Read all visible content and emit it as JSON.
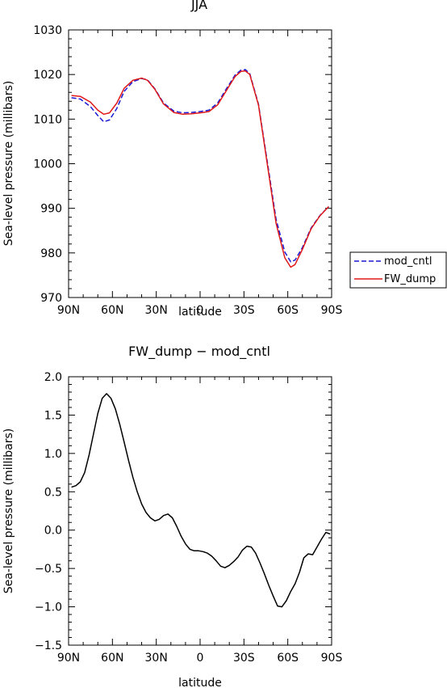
{
  "chart_data": [
    {
      "type": "line",
      "title": "JJA",
      "xlabel": "latitude",
      "ylabel": "Sea-level pressure (millibars)",
      "x_tick_labels": [
        "90N",
        "60N",
        "30N",
        "0",
        "30S",
        "60S",
        "90S"
      ],
      "x_ticks": [
        90,
        60,
        30,
        0,
        -30,
        -60,
        -90
      ],
      "xlim": [
        90,
        -90
      ],
      "ylim": [
        970,
        1030
      ],
      "y_ticks": [
        970,
        980,
        990,
        1000,
        1010,
        1020,
        1030
      ],
      "y_tick_labels": [
        "970",
        "980",
        "990",
        "1000",
        "1010",
        "1020",
        "1030"
      ],
      "legend": "right",
      "grid": false,
      "series": [
        {
          "name": "mod_cntl",
          "color": "#1a1ad6",
          "style": "dashed",
          "x": [
            88,
            82,
            75,
            70,
            66,
            62,
            57,
            52,
            46,
            40,
            36,
            31,
            25,
            18,
            12,
            6,
            0,
            -6,
            -12,
            -18,
            -24,
            -28,
            -31,
            -34,
            -40,
            -46,
            -52,
            -58,
            -62,
            -65,
            -70,
            -76,
            -82,
            -88
          ],
          "y": [
            1014.8,
            1014.5,
            1012.8,
            1010.8,
            1009.4,
            1009.8,
            1012.4,
            1016.2,
            1018.4,
            1019.1,
            1018.8,
            1016.8,
            1013.6,
            1011.8,
            1011.4,
            1011.5,
            1011.7,
            1012.0,
            1013.6,
            1016.8,
            1019.9,
            1021.0,
            1021.1,
            1020.2,
            1013.3,
            1000.4,
            987.5,
            980.2,
            978.0,
            978.4,
            981.2,
            985.6,
            988.4,
            990.4
          ]
        },
        {
          "name": "FW_dump",
          "color": "#e01818",
          "style": "solid",
          "x": [
            88,
            82,
            75,
            70,
            66,
            62,
            57,
            52,
            46,
            40,
            36,
            31,
            25,
            18,
            12,
            6,
            0,
            -6,
            -12,
            -18,
            -24,
            -28,
            -31,
            -34,
            -40,
            -46,
            -52,
            -58,
            -62,
            -65,
            -70,
            -76,
            -82,
            -88
          ],
          "y": [
            1015.3,
            1015.1,
            1013.8,
            1012.0,
            1011.1,
            1011.4,
            1013.6,
            1016.9,
            1018.7,
            1019.2,
            1018.7,
            1016.7,
            1013.4,
            1011.5,
            1011.1,
            1011.2,
            1011.4,
            1011.7,
            1013.2,
            1016.4,
            1019.6,
            1020.7,
            1020.8,
            1020.0,
            1013.1,
            999.9,
            986.6,
            978.9,
            976.8,
            977.4,
            980.8,
            985.4,
            988.3,
            990.4
          ]
        }
      ]
    },
    {
      "type": "line",
      "title": "FW_dump − mod_cntl",
      "xlabel": "latitude",
      "ylabel": "Sea-level pressure (millibars)",
      "x_tick_labels": [
        "90N",
        "60N",
        "30N",
        "0",
        "30S",
        "60S",
        "90S"
      ],
      "x_ticks": [
        90,
        60,
        30,
        0,
        -30,
        -60,
        -90
      ],
      "xlim": [
        90,
        -90
      ],
      "ylim": [
        -1.5,
        2.0
      ],
      "y_ticks": [
        -1.5,
        -1.0,
        -0.5,
        0.0,
        0.5,
        1.0,
        1.5,
        2.0
      ],
      "y_tick_labels": [
        "−1.5",
        "−1.0",
        "−0.5",
        "0.0",
        "0.5",
        "1.0",
        "1.5",
        "2.0"
      ],
      "grid": false,
      "series": [
        {
          "name": "",
          "color": "#000000",
          "style": "solid",
          "x": [
            88,
            85,
            82,
            79,
            76,
            73,
            70,
            67,
            64,
            61,
            58,
            55,
            52,
            49,
            46,
            43,
            40,
            37,
            34,
            31,
            28,
            25,
            22,
            19,
            16,
            13,
            10,
            7,
            4,
            1,
            -2,
            -5,
            -8,
            -11,
            -14,
            -17,
            -20,
            -23,
            -26,
            -29,
            -32,
            -35,
            -38,
            -41,
            -44,
            -47,
            -50,
            -53,
            -56,
            -59,
            -62,
            -65,
            -68,
            -71,
            -74,
            -77,
            -80,
            -83,
            -86,
            -89
          ],
          "y": [
            0.56,
            0.58,
            0.63,
            0.75,
            0.98,
            1.25,
            1.52,
            1.72,
            1.78,
            1.72,
            1.58,
            1.38,
            1.15,
            0.91,
            0.69,
            0.5,
            0.34,
            0.23,
            0.16,
            0.12,
            0.14,
            0.19,
            0.21,
            0.16,
            0.05,
            -0.08,
            -0.18,
            -0.25,
            -0.27,
            -0.27,
            -0.28,
            -0.3,
            -0.34,
            -0.4,
            -0.47,
            -0.49,
            -0.46,
            -0.41,
            -0.35,
            -0.26,
            -0.21,
            -0.22,
            -0.3,
            -0.43,
            -0.57,
            -0.72,
            -0.86,
            -0.99,
            -1.0,
            -0.92,
            -0.8,
            -0.7,
            -0.55,
            -0.36,
            -0.31,
            -0.32,
            -0.22,
            -0.12,
            -0.03,
            -0.05
          ]
        }
      ]
    }
  ]
}
